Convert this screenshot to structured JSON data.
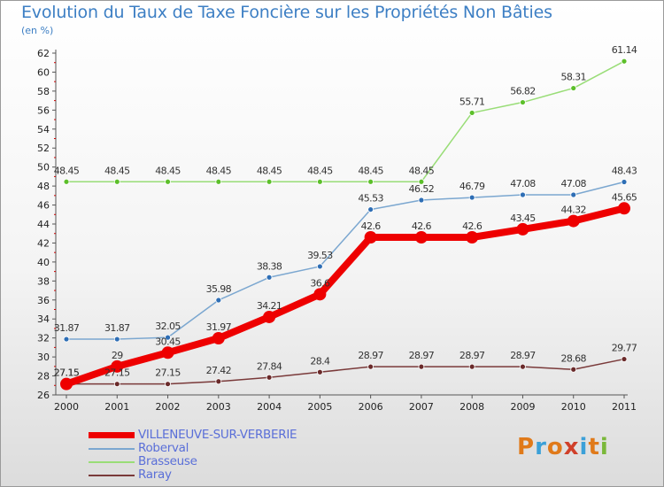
{
  "title": "Evolution du Taux de Taxe Foncière sur les Propriétés Non Bâties",
  "unit": "(en %)",
  "logo": {
    "text": "Proxiti",
    "colors": [
      "#e07a1a",
      "#3ba0d8",
      "#e07a1a",
      "#d0402a",
      "#3ba0d8",
      "#e07a1a",
      "#7ab83a"
    ]
  },
  "chart_data": {
    "type": "line",
    "x": [
      "2000",
      "2001",
      "2002",
      "2003",
      "2004",
      "2005",
      "2006",
      "2007",
      "2008",
      "2009",
      "2010",
      "2011"
    ],
    "ylim": [
      26,
      62
    ],
    "yticks": [
      26,
      28,
      30,
      32,
      34,
      36,
      38,
      40,
      42,
      44,
      46,
      48,
      50,
      52,
      54,
      56,
      58,
      60,
      62
    ],
    "grid": false,
    "legend_position": "bottom-left",
    "series": [
      {
        "name": "VILLENEUVE-SUR-VERBERIE",
        "color": "#ee0000",
        "width": 8,
        "marker": 7,
        "values": [
          27.15,
          29,
          30.45,
          31.97,
          34.21,
          36.6,
          42.6,
          42.6,
          42.6,
          43.45,
          44.32,
          45.65
        ],
        "labels": [
          "27.15",
          "29",
          "30.45",
          "31.97",
          "34.21",
          "36.6",
          "42.6",
          "42.6",
          "42.6",
          "43.45",
          "44.32",
          "45.65"
        ]
      },
      {
        "name": "Roberval",
        "color": "#7ba7d0",
        "width": 1.5,
        "marker": 3,
        "marker_color": "#2e6eb5",
        "values": [
          31.87,
          31.87,
          32.05,
          35.98,
          38.38,
          39.53,
          45.53,
          46.52,
          46.79,
          47.08,
          47.08,
          48.43
        ],
        "labels": [
          "31.87",
          "31.87",
          "32.05",
          "35.98",
          "38.38",
          "39.53",
          "45.53",
          "46.52",
          "46.79",
          "47.08",
          "47.08",
          "48.43"
        ]
      },
      {
        "name": "Brasseuse",
        "color": "#99dd77",
        "width": 1.5,
        "marker": 3,
        "marker_color": "#5cbf2a",
        "values": [
          48.45,
          48.45,
          48.45,
          48.45,
          48.45,
          48.45,
          48.45,
          48.45,
          55.71,
          56.82,
          58.31,
          61.14
        ],
        "labels": [
          "48.45",
          "48.45",
          "48.45",
          "48.45",
          "48.45",
          "48.45",
          "48.45",
          "48.45",
          "55.71",
          "56.82",
          "58.31",
          "61.14"
        ]
      },
      {
        "name": "Raray",
        "color": "#7a3a3a",
        "width": 1.5,
        "marker": 3,
        "marker_color": "#6a2a2a",
        "values": [
          27.15,
          27.15,
          27.15,
          27.42,
          27.84,
          28.4,
          28.97,
          28.97,
          28.97,
          28.97,
          28.68,
          29.77
        ],
        "labels": [
          "27.15",
          "27.15",
          "27.15",
          "27.42",
          "27.84",
          "28.4",
          "28.97",
          "28.97",
          "28.97",
          "28.97",
          "28.68",
          "29.77"
        ]
      }
    ]
  }
}
